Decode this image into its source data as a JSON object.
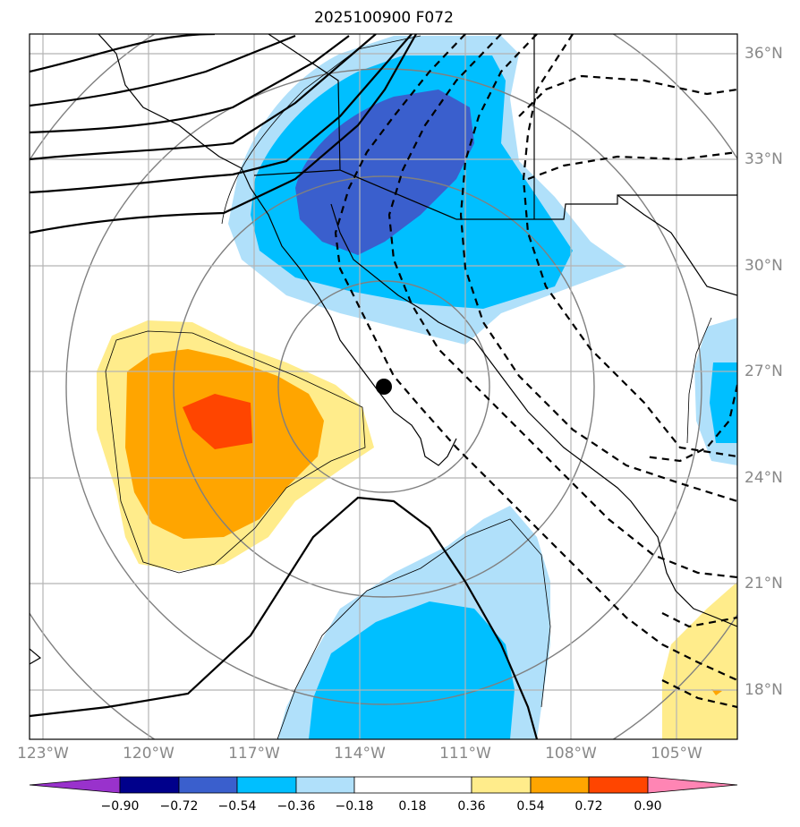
{
  "title": "2025100900 F072",
  "lat_labels": [
    "36°N",
    "33°N",
    "30°N",
    "27°N",
    "24°N",
    "21°N",
    "18°N"
  ],
  "lon_labels": [
    "123°W",
    "120°W",
    "117°W",
    "114°W",
    "111°W",
    "108°W",
    "105°W"
  ],
  "colorbar": {
    "colors": [
      "#9932cc",
      "#00008b",
      "#3a5fcd",
      "#00bfff",
      "#b0e0fa",
      "#ffffff",
      "#ffec8b",
      "#ffa500",
      "#ff4500",
      "#b22222",
      "#ff85b4"
    ],
    "ticks": [
      "−0.90",
      "−0.72",
      "−0.54",
      "−0.36",
      "−0.18",
      "0.18",
      "0.36",
      "0.54",
      "0.72",
      "0.90"
    ]
  },
  "marker": "storm-center"
}
